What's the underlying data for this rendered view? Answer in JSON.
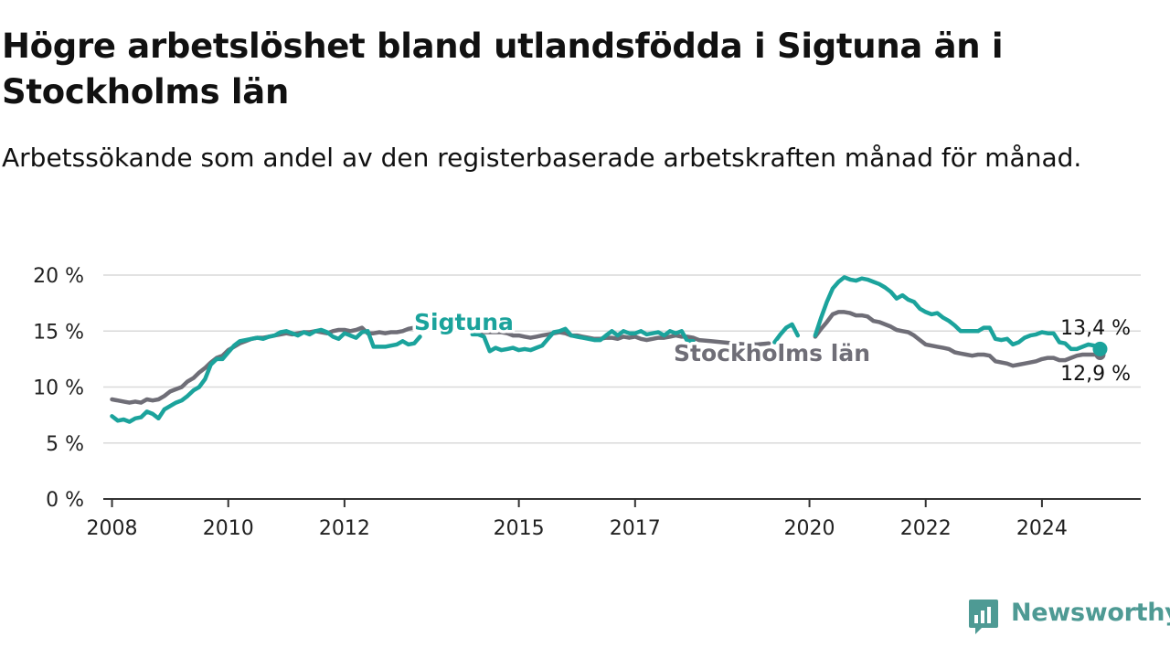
{
  "title": "Högre arbetslöshet bland utlandsfödda i Sigtuna än i Stockholms län",
  "subtitle": "Arbetssökande som andel av den registerbaserade arbetskraften månad för månad.",
  "brand": "Newsworthy",
  "colors": {
    "sigtuna": "#1ba39c",
    "stockholm": "#6f6e77",
    "grid": "#d9d9d9",
    "axis": "#333333",
    "brand": "#4e9a94"
  },
  "chart_data": {
    "type": "line",
    "title": "Högre arbetslöshet bland utlandsfödda i Sigtuna än i Stockholms län",
    "subtitle": "Arbetssökande som andel av den registerbaserade arbetskraften månad för månad.",
    "ylim": [
      0,
      20
    ],
    "ytick_values": [
      0,
      5,
      10,
      15,
      20
    ],
    "ytick_labels": [
      "0 %",
      "5 %",
      "10 %",
      "15 %",
      "20 %"
    ],
    "xtick_values": [
      2008,
      2010,
      2012,
      2015,
      2017,
      2020,
      2022,
      2024
    ],
    "xtick_labels": [
      "2008",
      "2010",
      "2012",
      "2015",
      "2017",
      "2020",
      "2022",
      "2024"
    ],
    "xlim": [
      2007.85,
      2025.7
    ],
    "grid": true,
    "legend": "inline labels",
    "series": [
      {
        "name": "Sigtuna",
        "points": [
          [
            2008.0,
            7.4
          ],
          [
            2008.1,
            7.0
          ],
          [
            2008.2,
            7.1
          ],
          [
            2008.3,
            6.9
          ],
          [
            2008.4,
            7.2
          ],
          [
            2008.5,
            7.3
          ],
          [
            2008.6,
            7.8
          ],
          [
            2008.7,
            7.6
          ],
          [
            2008.8,
            7.2
          ],
          [
            2008.9,
            8.0
          ],
          [
            2009.0,
            8.3
          ],
          [
            2009.1,
            8.6
          ],
          [
            2009.2,
            8.8
          ],
          [
            2009.3,
            9.2
          ],
          [
            2009.4,
            9.7
          ],
          [
            2009.5,
            10.0
          ],
          [
            2009.6,
            10.7
          ],
          [
            2009.7,
            12.0
          ],
          [
            2009.8,
            12.5
          ],
          [
            2009.9,
            12.5
          ],
          [
            2010.0,
            13.1
          ],
          [
            2010.1,
            13.7
          ],
          [
            2010.2,
            14.1
          ],
          [
            2010.3,
            14.2
          ],
          [
            2010.4,
            14.3
          ],
          [
            2010.5,
            14.4
          ],
          [
            2010.6,
            14.3
          ],
          [
            2010.7,
            14.5
          ],
          [
            2010.8,
            14.6
          ],
          [
            2010.9,
            14.9
          ],
          [
            2011.0,
            15.0
          ],
          [
            2011.1,
            14.8
          ],
          [
            2011.2,
            14.6
          ],
          [
            2011.3,
            14.9
          ],
          [
            2011.4,
            14.7
          ],
          [
            2011.5,
            15.0
          ],
          [
            2011.6,
            15.1
          ],
          [
            2011.7,
            14.9
          ],
          [
            2011.8,
            14.5
          ],
          [
            2011.9,
            14.3
          ],
          [
            2012.0,
            14.8
          ],
          [
            2012.1,
            14.6
          ],
          [
            2012.2,
            14.4
          ],
          [
            2012.3,
            14.9
          ],
          [
            2012.4,
            15.0
          ],
          [
            2012.5,
            13.6
          ],
          [
            2012.6,
            13.6
          ],
          [
            2012.7,
            13.6
          ],
          [
            2012.8,
            13.7
          ],
          [
            2012.9,
            13.8
          ],
          [
            2013.0,
            14.1
          ],
          [
            2013.1,
            13.8
          ],
          [
            2013.2,
            13.9
          ],
          [
            2013.3,
            14.5
          ],
          null,
          [
            2014.2,
            14.7
          ],
          [
            2014.3,
            14.7
          ],
          [
            2014.4,
            14.5
          ],
          [
            2014.5,
            13.2
          ],
          [
            2014.6,
            13.5
          ],
          [
            2014.7,
            13.3
          ],
          [
            2014.8,
            13.4
          ],
          [
            2014.9,
            13.5
          ],
          [
            2015.0,
            13.3
          ],
          [
            2015.1,
            13.4
          ],
          [
            2015.2,
            13.3
          ],
          [
            2015.3,
            13.5
          ],
          [
            2015.4,
            13.7
          ],
          [
            2015.5,
            14.3
          ],
          [
            2015.6,
            14.9
          ],
          [
            2015.7,
            15.0
          ],
          [
            2015.8,
            15.2
          ],
          [
            2015.9,
            14.6
          ],
          [
            2016.0,
            14.5
          ],
          [
            2016.1,
            14.4
          ],
          [
            2016.2,
            14.3
          ],
          [
            2016.3,
            14.2
          ],
          [
            2016.4,
            14.2
          ],
          [
            2016.5,
            14.6
          ],
          [
            2016.6,
            15.0
          ],
          [
            2016.7,
            14.6
          ],
          [
            2016.8,
            15.0
          ],
          [
            2016.9,
            14.8
          ],
          [
            2017.0,
            14.8
          ],
          [
            2017.1,
            15.0
          ],
          [
            2017.2,
            14.7
          ],
          [
            2017.3,
            14.8
          ],
          [
            2017.4,
            14.9
          ],
          [
            2017.5,
            14.6
          ],
          [
            2017.6,
            15.0
          ],
          [
            2017.7,
            14.8
          ],
          [
            2017.8,
            15.0
          ],
          [
            2017.9,
            14.1
          ],
          [
            2018.0,
            14.1
          ],
          null,
          [
            2019.4,
            14.0
          ],
          [
            2019.5,
            14.7
          ],
          [
            2019.6,
            15.3
          ],
          [
            2019.7,
            15.6
          ],
          [
            2019.8,
            14.6
          ],
          null,
          [
            2020.1,
            14.6
          ],
          [
            2020.2,
            16.2
          ],
          [
            2020.3,
            17.6
          ],
          [
            2020.4,
            18.8
          ],
          [
            2020.5,
            19.4
          ],
          [
            2020.6,
            19.8
          ],
          [
            2020.7,
            19.6
          ],
          [
            2020.8,
            19.5
          ],
          [
            2020.9,
            19.7
          ],
          [
            2021.0,
            19.6
          ],
          [
            2021.1,
            19.4
          ],
          [
            2021.2,
            19.2
          ],
          [
            2021.3,
            18.9
          ],
          [
            2021.4,
            18.5
          ],
          [
            2021.5,
            17.9
          ],
          [
            2021.6,
            18.2
          ],
          [
            2021.7,
            17.8
          ],
          [
            2021.8,
            17.6
          ],
          [
            2021.9,
            17.0
          ],
          [
            2022.0,
            16.7
          ],
          [
            2022.1,
            16.5
          ],
          [
            2022.2,
            16.6
          ],
          [
            2022.3,
            16.2
          ],
          [
            2022.4,
            15.9
          ],
          [
            2022.5,
            15.5
          ],
          [
            2022.6,
            15.0
          ],
          [
            2022.7,
            15.0
          ],
          [
            2022.8,
            15.0
          ],
          [
            2022.9,
            15.0
          ],
          [
            2023.0,
            15.3
          ],
          [
            2023.1,
            15.3
          ],
          [
            2023.2,
            14.3
          ],
          [
            2023.3,
            14.2
          ],
          [
            2023.4,
            14.3
          ],
          [
            2023.5,
            13.8
          ],
          [
            2023.6,
            14.0
          ],
          [
            2023.7,
            14.4
          ],
          [
            2023.8,
            14.6
          ],
          [
            2023.9,
            14.7
          ],
          [
            2024.0,
            14.9
          ],
          [
            2024.1,
            14.8
          ],
          [
            2024.2,
            14.8
          ],
          [
            2024.3,
            14.0
          ],
          [
            2024.4,
            13.9
          ],
          [
            2024.5,
            13.4
          ],
          [
            2024.6,
            13.4
          ],
          [
            2024.7,
            13.6
          ],
          [
            2024.8,
            13.8
          ],
          [
            2024.9,
            13.7
          ],
          [
            2025.0,
            13.4
          ]
        ],
        "end_label": "13,4 %",
        "inline_label": "Sigtuna"
      },
      {
        "name": "Stockholms län",
        "points": [
          [
            2008.0,
            8.9
          ],
          [
            2008.1,
            8.8
          ],
          [
            2008.2,
            8.7
          ],
          [
            2008.3,
            8.6
          ],
          [
            2008.4,
            8.7
          ],
          [
            2008.5,
            8.6
          ],
          [
            2008.6,
            8.9
          ],
          [
            2008.7,
            8.8
          ],
          [
            2008.8,
            8.9
          ],
          [
            2008.9,
            9.2
          ],
          [
            2009.0,
            9.6
          ],
          [
            2009.1,
            9.8
          ],
          [
            2009.2,
            10.0
          ],
          [
            2009.3,
            10.5
          ],
          [
            2009.4,
            10.8
          ],
          [
            2009.5,
            11.3
          ],
          [
            2009.6,
            11.7
          ],
          [
            2009.7,
            12.2
          ],
          [
            2009.8,
            12.6
          ],
          [
            2009.9,
            12.8
          ],
          [
            2010.0,
            13.3
          ],
          [
            2010.1,
            13.6
          ],
          [
            2010.2,
            13.9
          ],
          [
            2010.3,
            14.1
          ],
          [
            2010.4,
            14.3
          ],
          [
            2010.5,
            14.4
          ],
          [
            2010.6,
            14.4
          ],
          [
            2010.7,
            14.5
          ],
          [
            2010.8,
            14.6
          ],
          [
            2010.9,
            14.7
          ],
          [
            2011.0,
            14.8
          ],
          [
            2011.1,
            14.7
          ],
          [
            2011.2,
            14.8
          ],
          [
            2011.3,
            14.9
          ],
          [
            2011.4,
            14.9
          ],
          [
            2011.5,
            15.0
          ],
          [
            2011.6,
            14.9
          ],
          [
            2011.7,
            14.8
          ],
          [
            2011.8,
            15.0
          ],
          [
            2011.9,
            15.1
          ],
          [
            2012.0,
            15.1
          ],
          [
            2012.1,
            15.0
          ],
          [
            2012.2,
            15.1
          ],
          [
            2012.3,
            15.3
          ],
          [
            2012.4,
            14.8
          ],
          [
            2012.5,
            14.8
          ],
          [
            2012.6,
            14.9
          ],
          [
            2012.7,
            14.8
          ],
          [
            2012.8,
            14.9
          ],
          [
            2012.9,
            14.9
          ],
          [
            2013.0,
            15.0
          ],
          [
            2013.1,
            15.2
          ],
          [
            2013.2,
            15.3
          ],
          null,
          [
            2014.3,
            14.8
          ],
          [
            2014.4,
            14.9
          ],
          [
            2014.5,
            14.9
          ],
          [
            2014.6,
            14.9
          ],
          [
            2014.7,
            14.9
          ],
          [
            2014.8,
            14.8
          ],
          [
            2014.9,
            14.6
          ],
          [
            2015.0,
            14.6
          ],
          [
            2015.1,
            14.5
          ],
          [
            2015.2,
            14.4
          ],
          [
            2015.3,
            14.5
          ],
          [
            2015.4,
            14.6
          ],
          [
            2015.5,
            14.7
          ],
          [
            2015.6,
            14.8
          ],
          [
            2015.7,
            14.9
          ],
          [
            2015.8,
            14.8
          ],
          [
            2015.9,
            14.6
          ],
          [
            2016.0,
            14.6
          ],
          [
            2016.1,
            14.5
          ],
          [
            2016.2,
            14.4
          ],
          [
            2016.3,
            14.3
          ],
          [
            2016.4,
            14.3
          ],
          [
            2016.5,
            14.4
          ],
          [
            2016.6,
            14.4
          ],
          [
            2016.7,
            14.3
          ],
          [
            2016.8,
            14.5
          ],
          [
            2016.9,
            14.4
          ],
          [
            2017.0,
            14.5
          ],
          [
            2017.1,
            14.3
          ],
          [
            2017.2,
            14.2
          ],
          [
            2017.3,
            14.3
          ],
          [
            2017.4,
            14.4
          ],
          [
            2017.5,
            14.4
          ],
          [
            2017.6,
            14.5
          ],
          [
            2017.7,
            14.6
          ],
          [
            2017.8,
            14.5
          ],
          [
            2017.9,
            14.5
          ],
          [
            2018.0,
            14.4
          ],
          [
            2018.1,
            14.2
          ],
          [
            2018.3,
            14.1
          ],
          [
            2018.5,
            14.0
          ],
          [
            2018.7,
            13.9
          ],
          [
            2018.9,
            13.8
          ],
          [
            2019.1,
            13.8
          ],
          [
            2019.3,
            13.9
          ],
          null,
          [
            2020.1,
            14.5
          ],
          [
            2020.2,
            15.2
          ],
          [
            2020.3,
            15.8
          ],
          [
            2020.4,
            16.5
          ],
          [
            2020.5,
            16.7
          ],
          [
            2020.6,
            16.7
          ],
          [
            2020.7,
            16.6
          ],
          [
            2020.8,
            16.4
          ],
          [
            2020.9,
            16.4
          ],
          [
            2021.0,
            16.3
          ],
          [
            2021.1,
            15.9
          ],
          [
            2021.2,
            15.8
          ],
          [
            2021.3,
            15.6
          ],
          [
            2021.4,
            15.4
          ],
          [
            2021.5,
            15.1
          ],
          [
            2021.6,
            15.0
          ],
          [
            2021.7,
            14.9
          ],
          [
            2021.8,
            14.6
          ],
          [
            2021.9,
            14.2
          ],
          [
            2022.0,
            13.8
          ],
          [
            2022.1,
            13.7
          ],
          [
            2022.2,
            13.6
          ],
          [
            2022.3,
            13.5
          ],
          [
            2022.4,
            13.4
          ],
          [
            2022.5,
            13.1
          ],
          [
            2022.6,
            13.0
          ],
          [
            2022.7,
            12.9
          ],
          [
            2022.8,
            12.8
          ],
          [
            2022.9,
            12.9
          ],
          [
            2023.0,
            12.9
          ],
          [
            2023.1,
            12.8
          ],
          [
            2023.2,
            12.3
          ],
          [
            2023.3,
            12.2
          ],
          [
            2023.4,
            12.1
          ],
          [
            2023.5,
            11.9
          ],
          [
            2023.6,
            12.0
          ],
          [
            2023.7,
            12.1
          ],
          [
            2023.8,
            12.2
          ],
          [
            2023.9,
            12.3
          ],
          [
            2024.0,
            12.5
          ],
          [
            2024.1,
            12.6
          ],
          [
            2024.2,
            12.6
          ],
          [
            2024.3,
            12.4
          ],
          [
            2024.4,
            12.4
          ],
          [
            2024.5,
            12.6
          ],
          [
            2024.6,
            12.8
          ],
          [
            2024.7,
            12.9
          ],
          [
            2024.8,
            12.9
          ],
          [
            2024.9,
            12.9
          ],
          [
            2025.0,
            12.9
          ]
        ],
        "end_label": "12,9 %",
        "inline_label": "Stockholms län"
      }
    ]
  }
}
